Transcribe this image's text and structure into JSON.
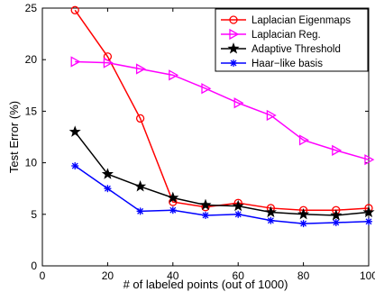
{
  "chart_data": {
    "type": "line",
    "title": "",
    "xlabel": "# of labeled points (out of 1000)",
    "ylabel": "Test Error (%)",
    "xlim": [
      0,
      100
    ],
    "ylim": [
      0,
      25
    ],
    "xticks": [
      0,
      20,
      40,
      60,
      80,
      100
    ],
    "yticks": [
      0,
      5,
      10,
      15,
      20,
      25
    ],
    "x": [
      10,
      20,
      30,
      40,
      50,
      60,
      70,
      80,
      90,
      100
    ],
    "grid": false,
    "legend_position": "top-right",
    "series": [
      {
        "name": "Laplacian Eigenmaps",
        "color": "#ff0000",
        "marker": "circle",
        "values": [
          24.8,
          20.3,
          14.3,
          6.2,
          5.7,
          6.1,
          5.6,
          5.4,
          5.4,
          5.6
        ]
      },
      {
        "name": "Laplacian Reg.",
        "color": "#ff00ff",
        "marker": "triangle-right",
        "values": [
          19.8,
          19.7,
          19.1,
          18.5,
          17.2,
          15.8,
          14.6,
          12.2,
          11.2,
          10.3
        ]
      },
      {
        "name": "Adaptive Threshold",
        "color": "#000000",
        "marker": "star",
        "values": [
          13.0,
          8.9,
          7.7,
          6.6,
          5.9,
          5.8,
          5.2,
          5.0,
          4.9,
          5.2
        ]
      },
      {
        "name": "Haar−like basis",
        "color": "#0000ff",
        "marker": "asterisk",
        "values": [
          9.7,
          7.5,
          5.3,
          5.4,
          4.9,
          5.0,
          4.4,
          4.1,
          4.2,
          4.3
        ]
      }
    ]
  }
}
